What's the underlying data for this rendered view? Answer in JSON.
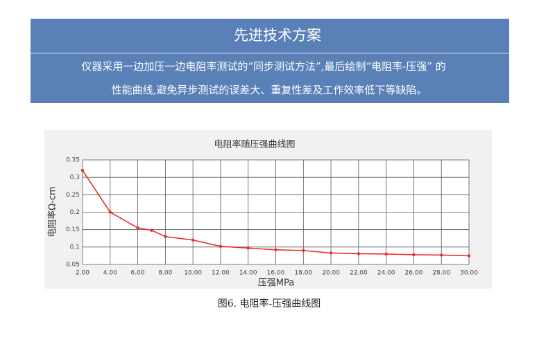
{
  "header": {
    "title": "先进技术方案",
    "lines": [
      "仪器采用一边加压一边电阻率测试的“同步测试方法”,最后绘制“电阻率-压强” 的",
      "性能曲线,避免异步测试的误差大、重复性差及工作效率低下等缺陷。"
    ]
  },
  "chart_data": {
    "type": "line",
    "title": "电阻率随压强曲线图",
    "x_label": "压强MPa",
    "y_label": "电阻率Ω-cm",
    "x": [
      2,
      4,
      6,
      7,
      8,
      10,
      12,
      14,
      16,
      18,
      20,
      22,
      24,
      26,
      28,
      30
    ],
    "values": [
      0.32,
      0.2,
      0.155,
      0.148,
      0.13,
      0.12,
      0.102,
      0.097,
      0.092,
      0.09,
      0.083,
      0.081,
      0.08,
      0.078,
      0.077,
      0.075
    ],
    "color": "#e8302a",
    "xlim": [
      2,
      30
    ],
    "ylim": [
      0.05,
      0.35
    ],
    "xticks": [
      {
        "value": 2,
        "label": "2.00"
      },
      {
        "value": 4,
        "label": "4.00"
      },
      {
        "value": 6,
        "label": "6.00"
      },
      {
        "value": 8,
        "label": "8.00"
      },
      {
        "value": 10,
        "label": "10.00"
      },
      {
        "value": 12,
        "label": "12.00"
      },
      {
        "value": 14,
        "label": "14.00"
      },
      {
        "value": 16,
        "label": "16.00"
      },
      {
        "value": 18,
        "label": "18.00"
      },
      {
        "value": 20,
        "label": "20.00"
      },
      {
        "value": 22,
        "label": "22.00"
      },
      {
        "value": 24,
        "label": "24.00"
      },
      {
        "value": 26,
        "label": "26.00"
      },
      {
        "value": 28,
        "label": "28.00"
      },
      {
        "value": 30,
        "label": "30.00"
      }
    ],
    "yticks": [
      0.05,
      0.1,
      0.15,
      0.2,
      0.25,
      0.3,
      0.35
    ],
    "grid": true
  },
  "caption": "图6. 电阻率-压强曲线图"
}
